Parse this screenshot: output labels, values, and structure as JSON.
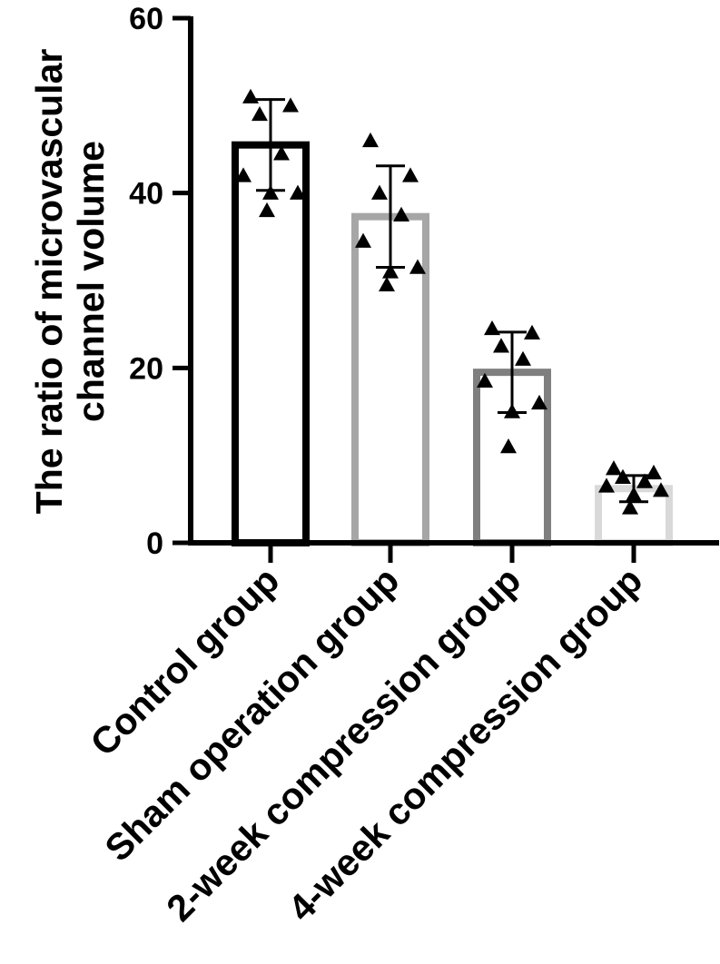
{
  "chart_data": {
    "type": "bar",
    "categories": [
      "Control group",
      "Sham operation group",
      "2-week compression group",
      "4-week compression group"
    ],
    "ylabel_lines": [
      "The ratio of microvascular",
      "channel volume"
    ],
    "xlabel": "",
    "ylim": [
      0,
      60
    ],
    "yticks": [
      0,
      20,
      40,
      60
    ],
    "grid": false,
    "legend": "none",
    "series": [
      {
        "values": [
          45.5,
          37.3,
          19.5,
          6.2
        ],
        "sd": [
          5.2,
          5.8,
          4.6,
          1.5
        ],
        "colors": [
          "#000000",
          "#a6a6a6",
          "#7f7f7f",
          "#d9d9d9"
        ],
        "points": [
          [
            51.0,
            50.0,
            49.0,
            44.5,
            42.0,
            40.0,
            40.0,
            38.0
          ],
          [
            46.0,
            42.0,
            40.0,
            37.5,
            34.5,
            31.5,
            31.0,
            29.5
          ],
          [
            24.5,
            24.0,
            22.5,
            21.0,
            18.5,
            16.0,
            15.0,
            11.0
          ],
          [
            8.5,
            8.0,
            7.5,
            7.0,
            6.5,
            6.0,
            5.5,
            4.0
          ]
        ]
      }
    ]
  }
}
